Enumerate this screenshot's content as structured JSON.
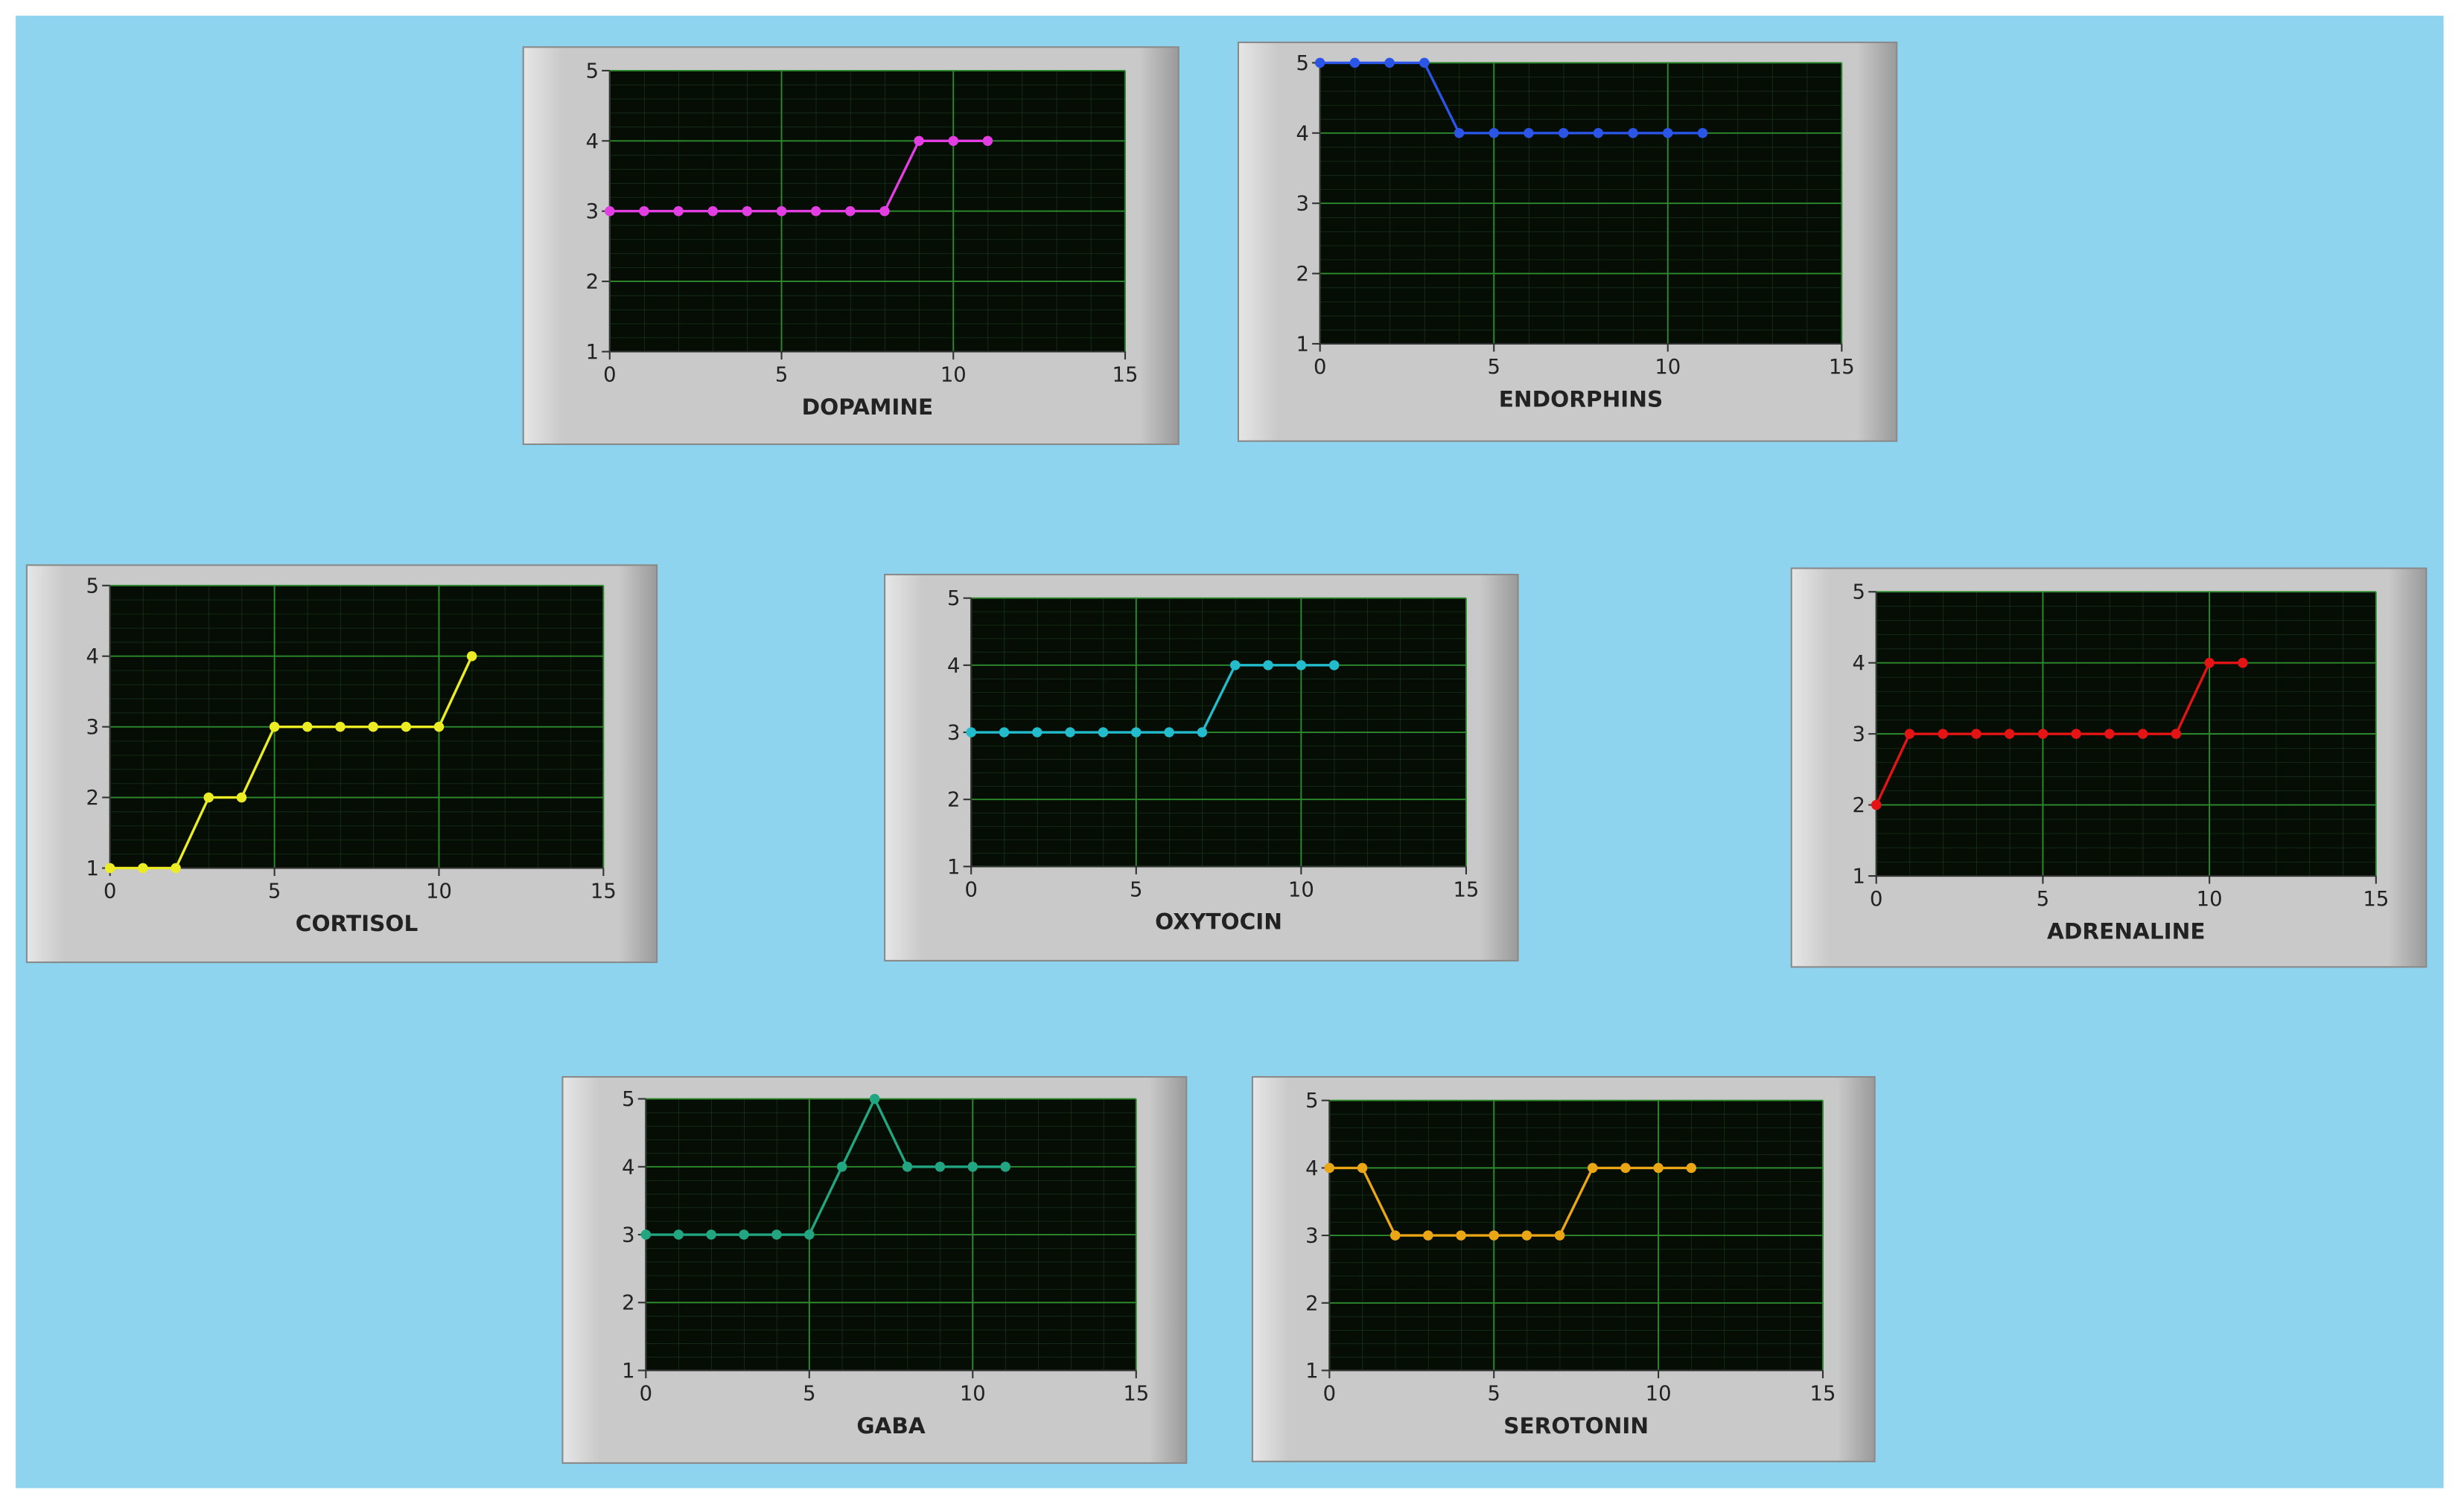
{
  "chart_data": [
    {
      "type": "line",
      "title": "DOPAMINE",
      "x": [
        0,
        1,
        2,
        3,
        4,
        5,
        6,
        7,
        8,
        9,
        10,
        11
      ],
      "values": [
        3,
        3,
        3,
        3,
        3,
        3,
        3,
        3,
        3,
        4,
        4,
        4
      ],
      "color": "#e23ee2",
      "xlim": [
        0,
        15
      ],
      "xticks": [
        0,
        5,
        10,
        15
      ],
      "ylim": [
        1,
        5
      ],
      "yticks": [
        1,
        2,
        3,
        4,
        5
      ],
      "grid": true
    },
    {
      "type": "line",
      "title": "ENDORPHINS",
      "x": [
        0,
        1,
        2,
        3,
        4,
        5,
        6,
        7,
        8,
        9,
        10,
        11
      ],
      "values": [
        5,
        5,
        5,
        5,
        4,
        4,
        4,
        4,
        4,
        4,
        4,
        4
      ],
      "color": "#2a55e6",
      "xlim": [
        0,
        15
      ],
      "xticks": [
        0,
        5,
        10,
        15
      ],
      "ylim": [
        1,
        5
      ],
      "yticks": [
        1,
        2,
        3,
        4,
        5
      ],
      "grid": true
    },
    {
      "type": "line",
      "title": "CORTISOL",
      "x": [
        0,
        1,
        2,
        3,
        4,
        5,
        6,
        7,
        8,
        9,
        10,
        11
      ],
      "values": [
        1,
        1,
        1,
        2,
        2,
        3,
        3,
        3,
        3,
        3,
        3,
        4
      ],
      "color": "#ecec24",
      "xlim": [
        0,
        15
      ],
      "xticks": [
        0,
        5,
        10,
        15
      ],
      "ylim": [
        1,
        5
      ],
      "yticks": [
        1,
        2,
        3,
        4,
        5
      ],
      "grid": true
    },
    {
      "type": "line",
      "title": "OXYTOCIN",
      "x": [
        0,
        1,
        2,
        3,
        4,
        5,
        6,
        7,
        8,
        9,
        10,
        11
      ],
      "values": [
        3,
        3,
        3,
        3,
        3,
        3,
        3,
        3,
        4,
        4,
        4,
        4
      ],
      "color": "#22bccc",
      "xlim": [
        0,
        15
      ],
      "xticks": [
        0,
        5,
        10,
        15
      ],
      "ylim": [
        1,
        5
      ],
      "yticks": [
        1,
        2,
        3,
        4,
        5
      ],
      "grid": true
    },
    {
      "type": "line",
      "title": "ADRENALINE",
      "x": [
        0,
        1,
        2,
        3,
        4,
        5,
        6,
        7,
        8,
        9,
        10,
        11
      ],
      "values": [
        2,
        3,
        3,
        3,
        3,
        3,
        3,
        3,
        3,
        3,
        4,
        4
      ],
      "color": "#e41414",
      "xlim": [
        0,
        15
      ],
      "xticks": [
        0,
        5,
        10,
        15
      ],
      "ylim": [
        1,
        5
      ],
      "yticks": [
        1,
        2,
        3,
        4,
        5
      ],
      "grid": true
    },
    {
      "type": "line",
      "title": "GABA",
      "x": [
        0,
        1,
        2,
        3,
        4,
        5,
        6,
        7,
        8,
        9,
        10,
        11
      ],
      "values": [
        3,
        3,
        3,
        3,
        3,
        3,
        4,
        5,
        4,
        4,
        4,
        4
      ],
      "color": "#22a682",
      "xlim": [
        0,
        15
      ],
      "xticks": [
        0,
        5,
        10,
        15
      ],
      "ylim": [
        1,
        5
      ],
      "yticks": [
        1,
        2,
        3,
        4,
        5
      ],
      "grid": true
    },
    {
      "type": "line",
      "title": "SEROTONIN",
      "x": [
        0,
        1,
        2,
        3,
        4,
        5,
        6,
        7,
        8,
        9,
        10,
        11
      ],
      "values": [
        4,
        4,
        3,
        3,
        3,
        3,
        3,
        3,
        4,
        4,
        4,
        4
      ],
      "color": "#eaa614",
      "xlim": [
        0,
        15
      ],
      "xticks": [
        0,
        5,
        10,
        15
      ],
      "ylim": [
        1,
        5
      ],
      "yticks": [
        1,
        2,
        3,
        4,
        5
      ],
      "grid": true
    }
  ]
}
